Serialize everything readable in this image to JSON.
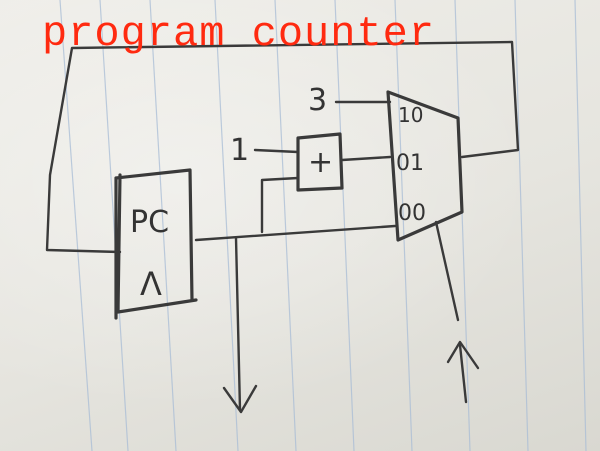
{
  "title": "program counter",
  "title_color": "#ff2a10",
  "ink_color": "#3a3a3a",
  "paper_line_color": "#9fb4cf",
  "register": {
    "name": "PC",
    "marker": "Λ"
  },
  "adder": {
    "symbol": "+",
    "constant_input": "1"
  },
  "mux": {
    "constant_input": "3",
    "select_labels": [
      "10",
      "01",
      "00"
    ]
  }
}
